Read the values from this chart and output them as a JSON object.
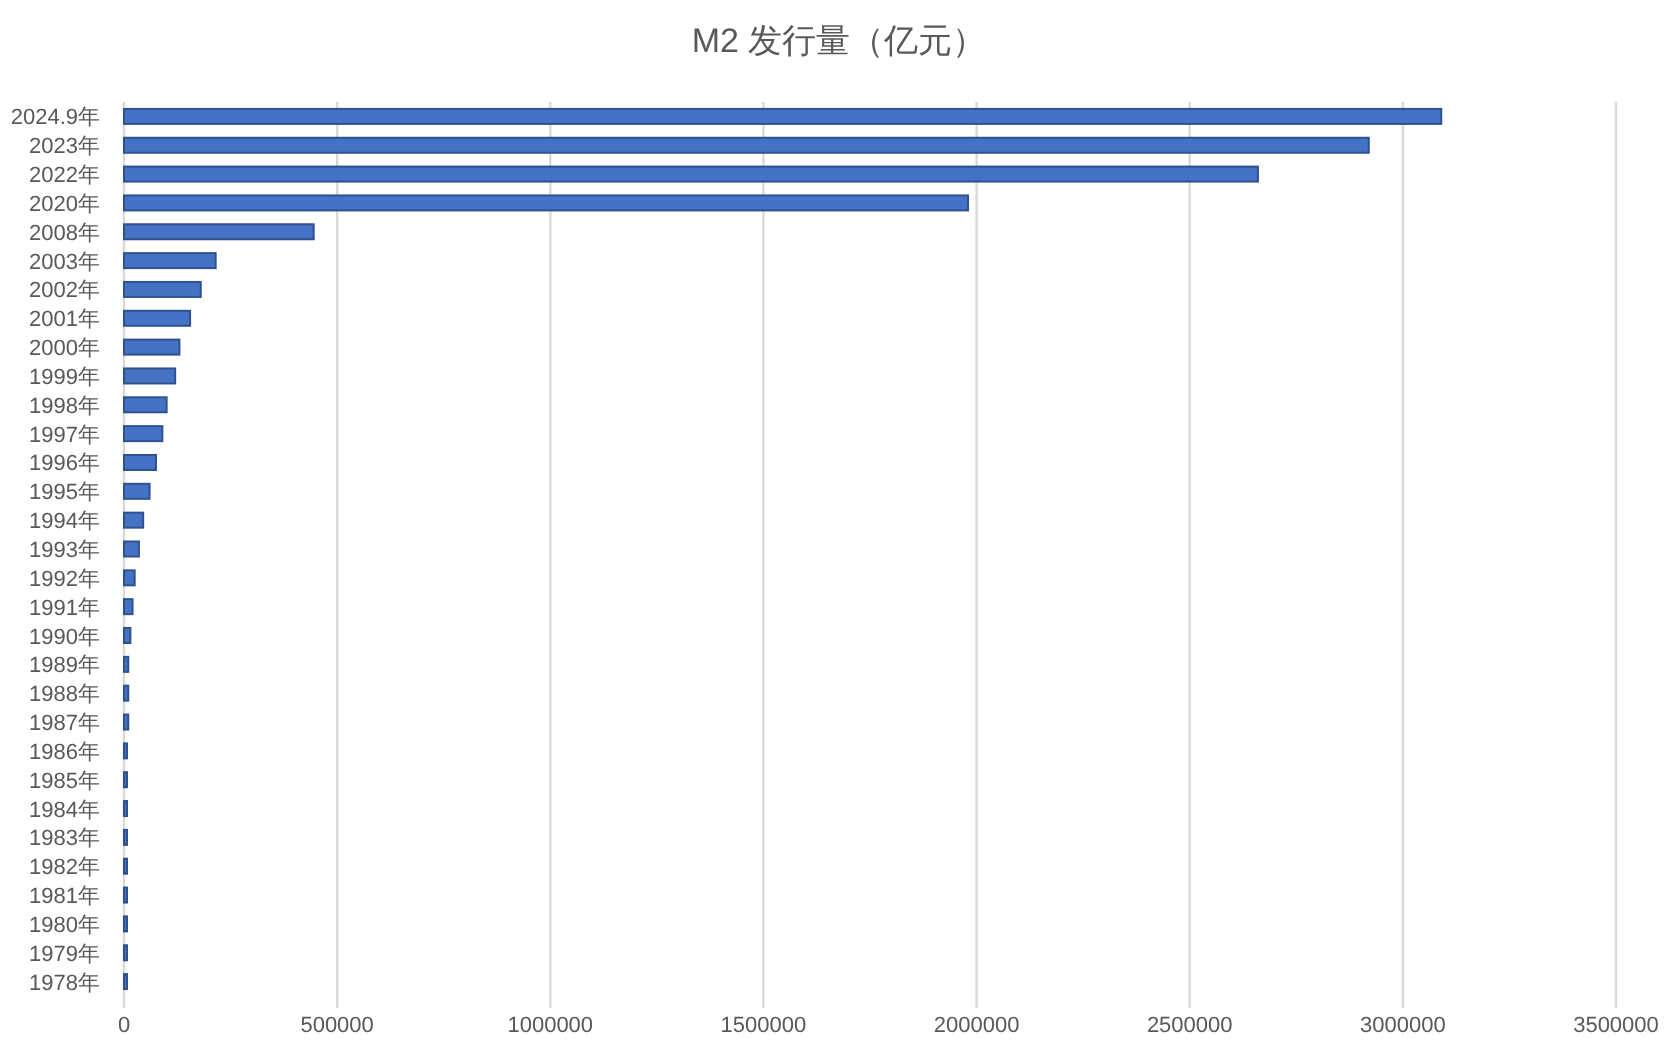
{
  "chart_data": {
    "type": "bar",
    "orientation": "horizontal",
    "title": "M2 发行量（亿元）",
    "categories": [
      "2024.9年",
      "2023年",
      "2022年",
      "2020年",
      "2008年",
      "2003年",
      "2002年",
      "2001年",
      "2000年",
      "1999年",
      "1998年",
      "1997年",
      "1996年",
      "1995年",
      "1994年",
      "1993年",
      "1992年",
      "1991年",
      "1990年",
      "1989年",
      "1988年",
      "1987年",
      "1986年",
      "1985年",
      "1984年",
      "1983年",
      "1982年",
      "1981年",
      "1980年",
      "1979年",
      "1978年"
    ],
    "values": [
      3090000,
      2920000,
      2660000,
      1980000,
      445000,
      215000,
      180000,
      155000,
      130000,
      120000,
      100000,
      90000,
      75000,
      60000,
      45000,
      35000,
      25000,
      20000,
      15000,
      10000,
      10000,
      10000,
      5000,
      5000,
      5000,
      5000,
      5000,
      5000,
      5000,
      5000,
      5000
    ],
    "color": "#4472c4",
    "xlim": [
      0,
      3500000
    ],
    "xticks": [
      0,
      500000,
      1000000,
      1500000,
      2000000,
      2500000,
      3000000,
      3500000
    ],
    "grid": "x"
  }
}
